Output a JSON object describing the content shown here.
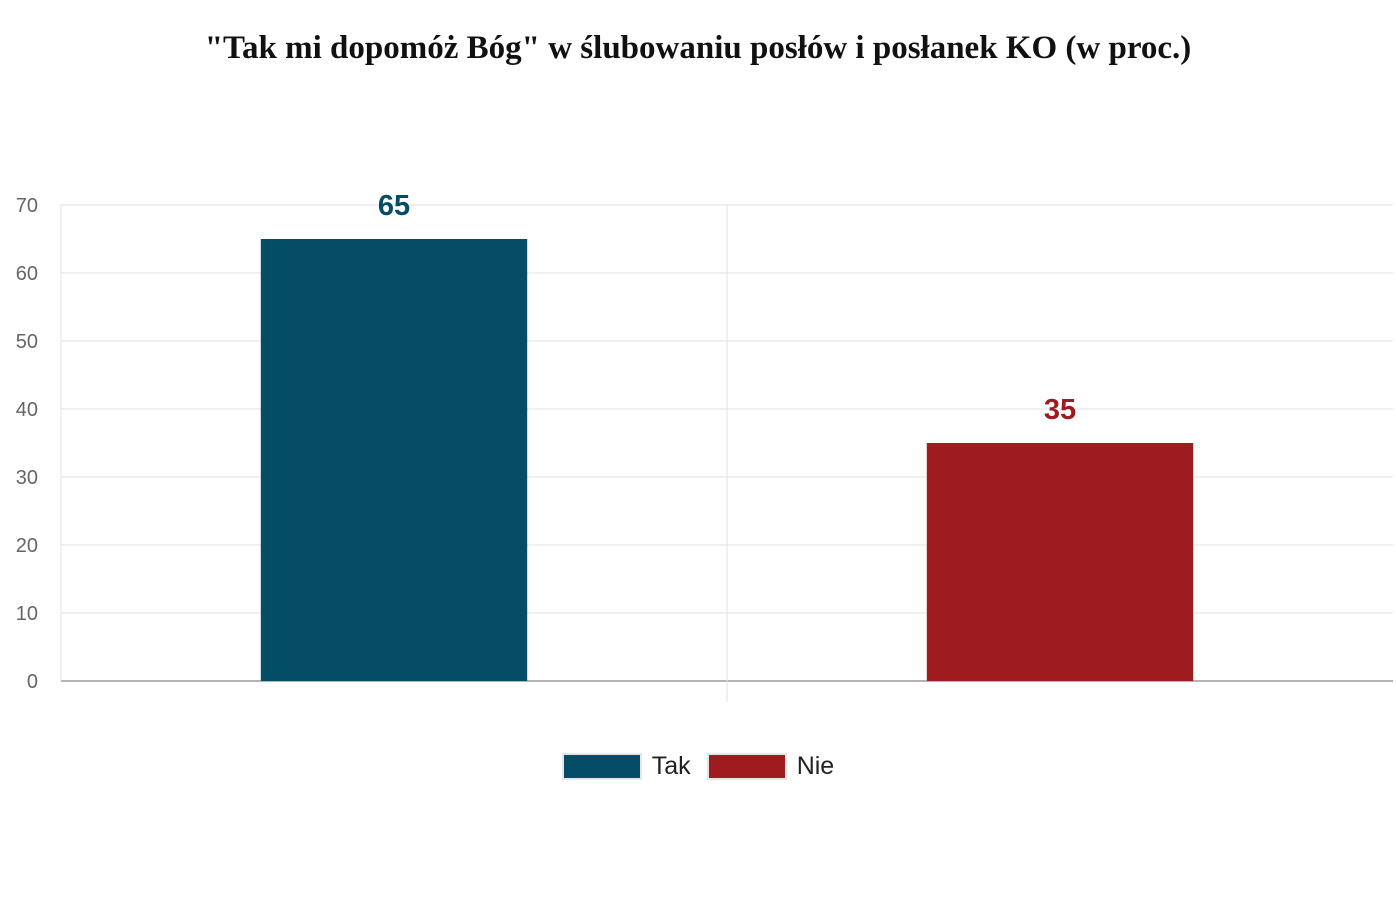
{
  "chart_data": {
    "type": "bar",
    "title": "\"Tak mi dopomóż Bóg\" w ślubowaniu posłów i posłanek KO (w proc.)",
    "categories": [
      "Tak",
      "Nie"
    ],
    "values": [
      65,
      35
    ],
    "data_labels": [
      "65",
      "35"
    ],
    "colors": [
      "#054c66",
      "#9e1c1f"
    ],
    "ylim": [
      0,
      70
    ],
    "yticks": [
      0,
      10,
      20,
      30,
      40,
      50,
      60,
      70
    ],
    "xlabel": "",
    "ylabel": "",
    "grid": true,
    "legend": {
      "position": "bottom",
      "entries": [
        "Tak",
        "Nie"
      ]
    }
  }
}
